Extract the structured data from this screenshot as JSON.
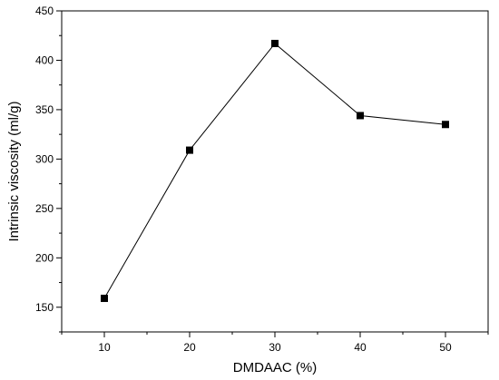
{
  "chart_data": {
    "type": "line",
    "title": "",
    "xlabel": "DMDAAC (%)",
    "ylabel": "Intrinsic viscosity (ml/g)",
    "x": [
      10,
      20,
      30,
      40,
      50
    ],
    "series": [
      {
        "values": [
          159,
          309,
          417,
          344,
          335
        ],
        "marker": "square",
        "color": "#000000"
      }
    ],
    "xlim": [
      5,
      55
    ],
    "ylim": [
      125,
      450
    ],
    "xticks": [
      10,
      20,
      30,
      40,
      50
    ],
    "yticks": [
      150,
      200,
      250,
      300,
      350,
      400,
      450
    ],
    "grid": false,
    "legend": "none"
  }
}
